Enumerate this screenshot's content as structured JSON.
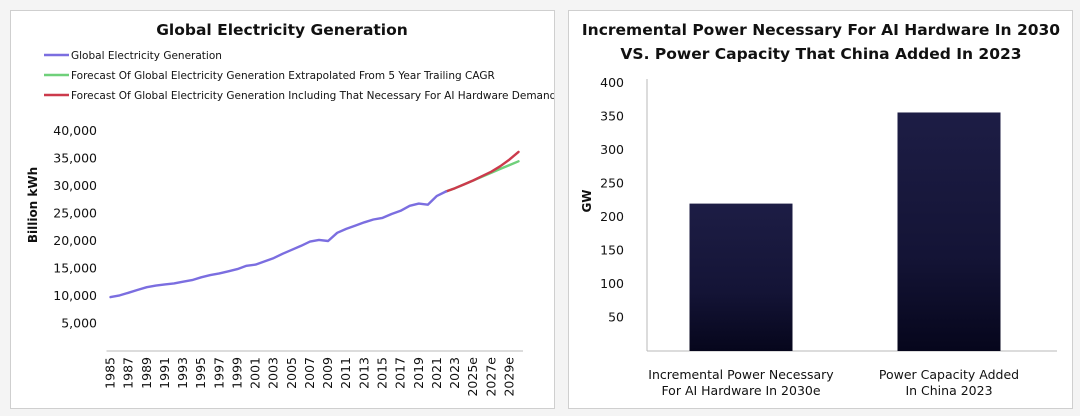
{
  "chart_data": [
    {
      "type": "line",
      "title": "Global Electricity Generation",
      "xlabel": "",
      "ylabel": "Billion kWh",
      "ylim": [
        0,
        40000
      ],
      "yticks": [
        5000,
        10000,
        15000,
        20000,
        25000,
        30000,
        35000,
        40000
      ],
      "ytick_labels": [
        "5,000",
        "10,000",
        "15,000",
        "20,000",
        "25,000",
        "30,000",
        "35,000",
        "40,000"
      ],
      "x": [
        1985,
        1986,
        1987,
        1988,
        1989,
        1990,
        1991,
        1992,
        1993,
        1994,
        1995,
        1996,
        1997,
        1998,
        1999,
        2000,
        2001,
        2002,
        2003,
        2004,
        2005,
        2006,
        2007,
        2008,
        2009,
        2010,
        2011,
        2012,
        2013,
        2014,
        2015,
        2016,
        2017,
        2018,
        2019,
        2020,
        2021,
        2022,
        2023,
        2024,
        2025,
        2026,
        2027,
        2028,
        2029,
        2030
      ],
      "xtick_labels": [
        "1985",
        "1987",
        "1989",
        "1991",
        "1993",
        "1995",
        "1997",
        "1999",
        "2001",
        "2003",
        "2005",
        "2007",
        "2009",
        "2011",
        "2013",
        "2015",
        "2017",
        "2019",
        "2021",
        "2023",
        "2025e",
        "2027e",
        "2029e"
      ],
      "xtick_positions": [
        1985,
        1987,
        1989,
        1991,
        1993,
        1995,
        1997,
        1999,
        2001,
        2003,
        2005,
        2007,
        2009,
        2011,
        2013,
        2015,
        2017,
        2019,
        2021,
        2023,
        2025,
        2027,
        2029
      ],
      "xlim": [
        1984.5,
        2030.5
      ],
      "legend_position": "top-left",
      "series": [
        {
          "name": "Global Electricity Generation",
          "color": "#7b6ee0",
          "x": [
            1985,
            1986,
            1987,
            1988,
            1989,
            1990,
            1991,
            1992,
            1993,
            1994,
            1995,
            1996,
            1997,
            1998,
            1999,
            2000,
            2001,
            2002,
            2003,
            2004,
            2005,
            2006,
            2007,
            2008,
            2009,
            2010,
            2011,
            2012,
            2013,
            2014,
            2015,
            2016,
            2017,
            2018,
            2019,
            2020,
            2021,
            2022
          ],
          "values": [
            9800,
            10100,
            10600,
            11100,
            11600,
            11900,
            12100,
            12300,
            12600,
            12900,
            13400,
            13800,
            14100,
            14500,
            14900,
            15500,
            15700,
            16300,
            16900,
            17700,
            18400,
            19100,
            19900,
            20200,
            20000,
            21500,
            22200,
            22800,
            23400,
            23900,
            24200,
            24900,
            25500,
            26400,
            26800,
            26600,
            28200,
            29000
          ]
        },
        {
          "name": "Forecast Of Global Electricity Generation Extrapolated From 5 Year Trailing CAGR",
          "color": "#6fd07a",
          "x": [
            2022,
            2023,
            2024,
            2025,
            2026,
            2027,
            2028,
            2029,
            2030
          ],
          "values": [
            29000,
            29600,
            30300,
            31000,
            31700,
            32400,
            33100,
            33800,
            34500
          ]
        },
        {
          "name": "Forecast Of Global Electricity Generation Including That Necessary For AI Hardware Demand",
          "color": "#cc3a4c",
          "x": [
            2022,
            2023,
            2024,
            2025,
            2026,
            2027,
            2028,
            2029,
            2030
          ],
          "values": [
            29000,
            29600,
            30300,
            31000,
            31800,
            32600,
            33600,
            34800,
            36200
          ]
        }
      ]
    },
    {
      "type": "bar",
      "title": "Incremental Power Necessary For AI Hardware In 2030 VS. Power Capacity That China Added In 2023",
      "title_lines": [
        "Incremental Power Necessary For AI Hardware In 2030",
        "VS. Power Capacity That China Added In 2023"
      ],
      "xlabel": "",
      "ylabel": "GW",
      "ylim": [
        0,
        400
      ],
      "yticks": [
        50,
        100,
        150,
        200,
        250,
        300,
        350,
        400
      ],
      "ytick_labels": [
        "50",
        "100",
        "150",
        "200",
        "250",
        "300",
        "350",
        "400"
      ],
      "categories": [
        "Incremental Power Necessary For AI Hardware In 2030e",
        "Power Capacity Added In China 2023"
      ],
      "category_lines": [
        [
          "Incremental Power Necessary",
          "For AI Hardware In 2030e"
        ],
        [
          "Power Capacity Added",
          "In China 2023"
        ]
      ],
      "values": [
        220,
        356
      ],
      "color": "#15153a"
    }
  ]
}
